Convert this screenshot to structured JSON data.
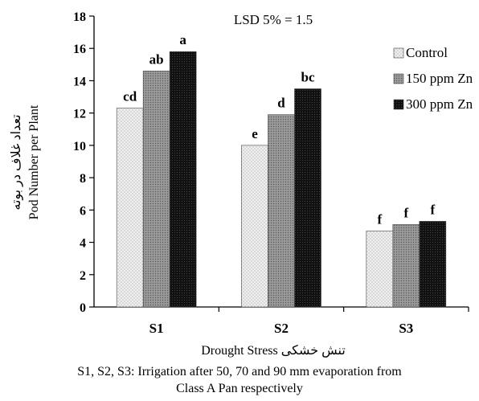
{
  "chart_data": {
    "type": "bar",
    "categories": [
      "S1",
      "S2",
      "S3"
    ],
    "series": [
      {
        "name": "Control",
        "values": [
          12.3,
          10.0,
          4.7
        ],
        "letters": [
          "cd",
          "e",
          "f"
        ],
        "color": "#e8e8e8",
        "pattern": "dots-light"
      },
      {
        "name": "150 ppm Zn",
        "values": [
          14.6,
          11.9,
          5.1
        ],
        "letters": [
          "ab",
          "d",
          "f"
        ],
        "color": "#8c8c8c",
        "pattern": "dots-medium"
      },
      {
        "name": "300 ppm Zn",
        "values": [
          15.8,
          13.5,
          5.3
        ],
        "letters": [
          "a",
          "bc",
          "f"
        ],
        "color": "#111111",
        "pattern": "dots-dark"
      }
    ],
    "ylim": [
      0,
      18
    ],
    "yticks": [
      0,
      2,
      4,
      6,
      8,
      10,
      12,
      14,
      16,
      18
    ],
    "ylabel": "Pod Number per Plant",
    "ylabel_fa": "تعداد غلاف در بوته",
    "xlabel": "Drought Stress",
    "xlabel_fa": "تنش خشکی",
    "annotation": "LSD 5% = 1.5",
    "legend_position": "top-right",
    "grid": false
  },
  "caption": {
    "line1": "S1, S2, S3: Irrigation  after 50, 70 and 90 mm evaporation from",
    "line2": "Class A Pan respectively"
  }
}
